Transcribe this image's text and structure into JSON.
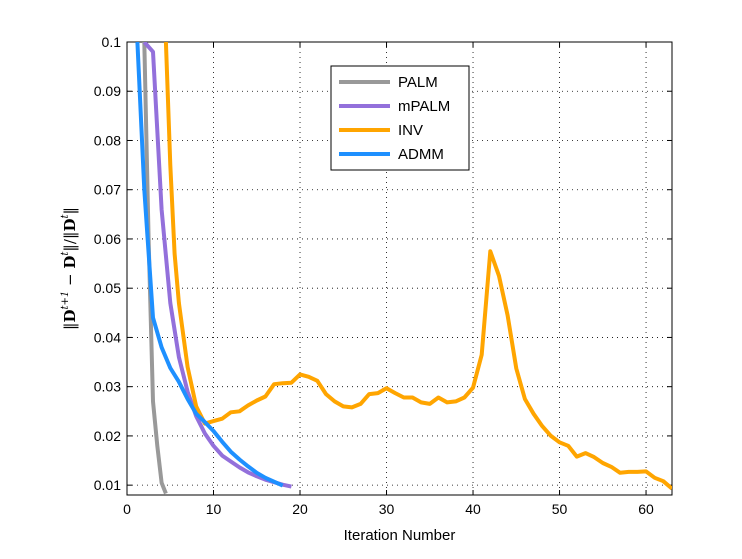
{
  "chart_data": {
    "type": "line",
    "xlabel": "Iteration Number",
    "ylabel": "‖D^{t+1} − D^{t}‖ / ‖D^{t}‖",
    "ylabel_parts": {
      "n1": "‖",
      "D1": "D",
      "sup1": "t+1",
      "minus": " − ",
      "D2": "D",
      "sup2": "t",
      "n2": "‖/‖",
      "D3": "D",
      "sup3": "t",
      "n3": "‖"
    },
    "xlim": [
      0,
      63
    ],
    "ylim": [
      0.008,
      0.1
    ],
    "xticks": [
      0,
      10,
      20,
      30,
      40,
      50,
      60
    ],
    "yticks": [
      0.01,
      0.02,
      0.03,
      0.04,
      0.05,
      0.06,
      0.07,
      0.08,
      0.09,
      0.1
    ],
    "ytick_labels": [
      "0.01",
      "0.02",
      "0.03",
      "0.04",
      "0.05",
      "0.06",
      "0.07",
      "0.08",
      "0.09",
      "0.1"
    ],
    "xtick_labels": [
      "0",
      "10",
      "20",
      "30",
      "40",
      "50",
      "60"
    ],
    "grid": true,
    "legend_position": "top-center",
    "series": [
      {
        "name": "PALM",
        "color": "#999999",
        "x": [
          2,
          2.5,
          3,
          3.5,
          4,
          4.5
        ],
        "y": [
          0.1,
          0.06,
          0.027,
          0.018,
          0.0105,
          0.0083
        ]
      },
      {
        "name": "mPALM",
        "color": "#9370DB",
        "x": [
          2,
          3,
          4,
          5,
          6,
          7,
          8,
          9,
          10,
          11,
          12,
          13,
          14,
          15,
          16,
          17,
          18,
          19
        ],
        "y": [
          0.1,
          0.098,
          0.066,
          0.047,
          0.036,
          0.029,
          0.024,
          0.0205,
          0.018,
          0.016,
          0.0148,
          0.0136,
          0.0126,
          0.0118,
          0.0111,
          0.0106,
          0.0101,
          0.0097
        ]
      },
      {
        "name": "INV",
        "color": "#FFA500",
        "x": [
          4.5,
          5,
          5.5,
          6,
          7,
          8,
          9,
          10,
          11,
          12,
          13,
          14,
          15,
          16,
          17,
          18,
          19,
          20,
          21,
          22,
          23,
          24,
          25,
          26,
          27,
          28,
          29,
          30,
          31,
          32,
          33,
          34,
          35,
          36,
          37,
          38,
          39,
          40,
          41,
          42,
          43,
          44,
          45,
          46,
          47,
          48,
          49,
          50,
          51,
          52,
          53,
          54,
          55,
          56,
          57,
          58,
          59,
          60,
          61,
          62,
          63
        ],
        "y": [
          0.1,
          0.075,
          0.057,
          0.047,
          0.034,
          0.026,
          0.0225,
          0.023,
          0.0235,
          0.0248,
          0.025,
          0.0262,
          0.0272,
          0.028,
          0.0305,
          0.0307,
          0.0308,
          0.0325,
          0.032,
          0.0312,
          0.0285,
          0.027,
          0.026,
          0.0258,
          0.0265,
          0.0285,
          0.0287,
          0.0297,
          0.0287,
          0.0278,
          0.0278,
          0.0268,
          0.0265,
          0.0278,
          0.0268,
          0.027,
          0.0278,
          0.0298,
          0.0365,
          0.0575,
          0.0525,
          0.0445,
          0.0337,
          0.0275,
          0.0245,
          0.022,
          0.02,
          0.0187,
          0.018,
          0.0158,
          0.0165,
          0.0157,
          0.0145,
          0.0137,
          0.0125,
          0.0127,
          0.0127,
          0.0128,
          0.0115,
          0.0108,
          0.0093
        ]
      },
      {
        "name": "ADMM",
        "color": "#1E90FF",
        "x": [
          1.2,
          2,
          3,
          4,
          5,
          6,
          7,
          8,
          9,
          10,
          11,
          12,
          13,
          14,
          15,
          16,
          17,
          18
        ],
        "y": [
          0.1,
          0.07,
          0.044,
          0.038,
          0.0338,
          0.031,
          0.0275,
          0.0245,
          0.0228,
          0.021,
          0.0188,
          0.0168,
          0.0152,
          0.0138,
          0.0125,
          0.0115,
          0.0107,
          0.0099
        ]
      }
    ]
  }
}
